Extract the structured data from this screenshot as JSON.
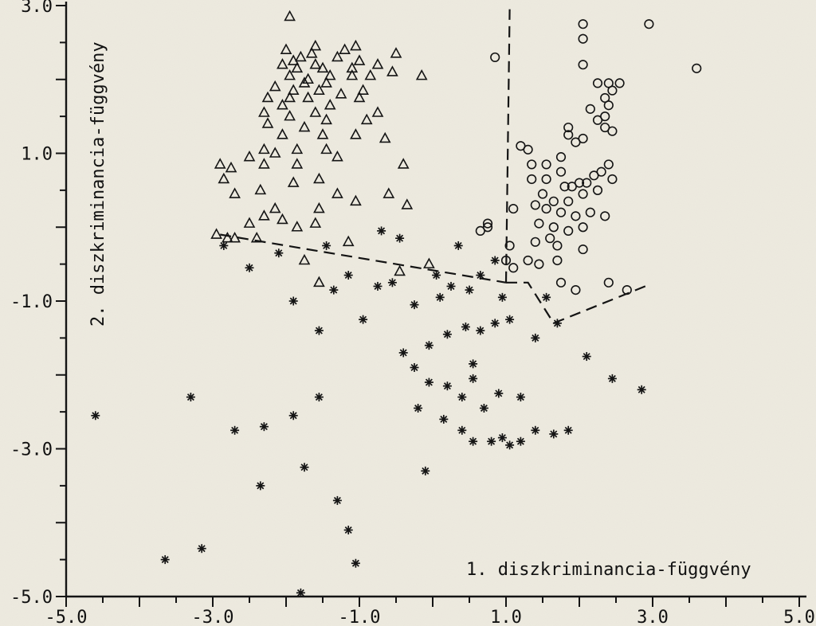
{
  "chart_data": {
    "type": "scatter",
    "title": "",
    "xlabel": "1. diszkriminancia-függvény",
    "ylabel": "2. diszkriminancia-függvény",
    "xlim": [
      -5.0,
      5.0
    ],
    "ylim": [
      -5.0,
      3.0
    ],
    "x_ticks": [
      "-5.0",
      "-3.0",
      "-1.0",
      "1.0",
      "3.0",
      "5.0"
    ],
    "y_ticks": [
      "3.0",
      "1.0",
      "-1.0",
      "-3.0",
      "-5.0"
    ],
    "legend": "none",
    "grid": false,
    "series": [
      {
        "marker": "triangle",
        "values": [
          [
            -1.95,
            2.85
          ],
          [
            -0.15,
            2.05
          ],
          [
            -0.55,
            2.1
          ],
          [
            -0.5,
            2.35
          ],
          [
            -1.1,
            2.05
          ],
          [
            -2.0,
            2.4
          ],
          [
            -1.65,
            2.35
          ],
          [
            -1.8,
            2.3
          ],
          [
            -1.6,
            2.2
          ],
          [
            -1.7,
            2.0
          ],
          [
            -1.9,
            2.25
          ],
          [
            -1.75,
            1.95
          ],
          [
            -1.5,
            2.15
          ],
          [
            -1.4,
            2.05
          ],
          [
            -1.85,
            2.15
          ],
          [
            -1.45,
            1.95
          ],
          [
            -1.55,
            1.85
          ],
          [
            -1.95,
            2.05
          ],
          [
            -2.15,
            1.9
          ],
          [
            -2.25,
            1.75
          ],
          [
            -1.95,
            1.75
          ],
          [
            -1.7,
            1.75
          ],
          [
            -2.05,
            1.65
          ],
          [
            -1.95,
            1.5
          ],
          [
            -2.3,
            1.55
          ],
          [
            -2.25,
            1.4
          ],
          [
            -1.6,
            1.55
          ],
          [
            -1.45,
            1.45
          ],
          [
            -1.75,
            1.35
          ],
          [
            -2.05,
            1.25
          ],
          [
            -1.5,
            1.25
          ],
          [
            -1.45,
            1.05
          ],
          [
            -1.85,
            1.05
          ],
          [
            -2.15,
            1.0
          ],
          [
            -2.3,
            0.85
          ],
          [
            -2.5,
            0.95
          ],
          [
            -2.75,
            0.8
          ],
          [
            -2.85,
            0.65
          ],
          [
            -2.9,
            0.85
          ],
          [
            -2.7,
            0.45
          ],
          [
            -2.35,
            0.5
          ],
          [
            -1.85,
            0.85
          ],
          [
            -1.9,
            0.6
          ],
          [
            -1.55,
            0.65
          ],
          [
            -1.3,
            0.95
          ],
          [
            -1.0,
            1.75
          ],
          [
            -0.9,
            1.45
          ],
          [
            -0.75,
            1.55
          ],
          [
            -1.05,
            1.25
          ],
          [
            -0.65,
            1.2
          ],
          [
            -1.3,
            0.45
          ],
          [
            -1.05,
            0.35
          ],
          [
            -1.55,
            0.25
          ],
          [
            -1.85,
            0.0
          ],
          [
            -2.05,
            0.1
          ],
          [
            -2.3,
            0.15
          ],
          [
            -2.5,
            0.05
          ],
          [
            -2.15,
            0.25
          ],
          [
            -2.8,
            -0.15
          ],
          [
            -2.95,
            -0.1
          ],
          [
            -2.7,
            -0.15
          ],
          [
            -2.4,
            -0.15
          ],
          [
            -1.6,
            0.05
          ],
          [
            -1.15,
            -0.2
          ],
          [
            -1.75,
            -0.45
          ],
          [
            -0.4,
            0.85
          ],
          [
            -0.6,
            0.45
          ],
          [
            -0.35,
            0.3
          ],
          [
            -0.05,
            -0.5
          ],
          [
            -0.45,
            -0.6
          ],
          [
            -1.55,
            -0.75
          ],
          [
            -2.3,
            1.05
          ],
          [
            -1.4,
            1.65
          ],
          [
            -1.2,
            2.4
          ],
          [
            -1.1,
            2.15
          ],
          [
            -1.0,
            2.25
          ],
          [
            -0.75,
            2.2
          ],
          [
            -0.95,
            1.85
          ],
          [
            -1.25,
            1.8
          ],
          [
            -1.6,
            2.45
          ],
          [
            -1.3,
            2.3
          ],
          [
            -1.05,
            2.45
          ],
          [
            -0.85,
            2.05
          ],
          [
            -1.9,
            1.85
          ],
          [
            -2.05,
            2.2
          ]
        ]
      },
      {
        "marker": "circle",
        "values": [
          [
            2.05,
            2.75
          ],
          [
            2.05,
            2.55
          ],
          [
            2.95,
            2.75
          ],
          [
            3.6,
            2.15
          ],
          [
            2.05,
            2.2
          ],
          [
            2.25,
            1.95
          ],
          [
            2.4,
            1.95
          ],
          [
            2.45,
            1.85
          ],
          [
            2.55,
            1.95
          ],
          [
            2.35,
            1.75
          ],
          [
            2.15,
            1.6
          ],
          [
            2.4,
            1.65
          ],
          [
            2.35,
            1.5
          ],
          [
            1.85,
            1.35
          ],
          [
            1.85,
            1.25
          ],
          [
            1.95,
            1.15
          ],
          [
            2.05,
            1.2
          ],
          [
            1.75,
            0.95
          ],
          [
            1.55,
            0.85
          ],
          [
            1.35,
            0.85
          ],
          [
            1.35,
            0.65
          ],
          [
            1.55,
            0.65
          ],
          [
            1.75,
            0.75
          ],
          [
            1.8,
            0.55
          ],
          [
            1.9,
            0.55
          ],
          [
            2.0,
            0.6
          ],
          [
            2.1,
            0.6
          ],
          [
            2.2,
            0.7
          ],
          [
            2.3,
            0.75
          ],
          [
            2.4,
            0.85
          ],
          [
            2.45,
            0.65
          ],
          [
            2.25,
            0.5
          ],
          [
            2.05,
            0.45
          ],
          [
            1.85,
            0.35
          ],
          [
            1.65,
            0.35
          ],
          [
            1.5,
            0.45
          ],
          [
            1.55,
            0.25
          ],
          [
            1.4,
            0.3
          ],
          [
            1.75,
            0.2
          ],
          [
            1.95,
            0.15
          ],
          [
            2.15,
            0.2
          ],
          [
            2.35,
            0.15
          ],
          [
            1.65,
            0.0
          ],
          [
            1.85,
            -0.05
          ],
          [
            2.05,
            0.0
          ],
          [
            1.4,
            -0.2
          ],
          [
            1.6,
            -0.15
          ],
          [
            1.3,
            -0.45
          ],
          [
            1.45,
            -0.5
          ],
          [
            1.7,
            -0.45
          ],
          [
            2.05,
            -0.3
          ],
          [
            1.75,
            -0.75
          ],
          [
            1.95,
            -0.85
          ],
          [
            2.4,
            -0.75
          ],
          [
            2.65,
            -0.85
          ],
          [
            1.05,
            -0.25
          ],
          [
            1.0,
            -0.45
          ],
          [
            1.1,
            -0.55
          ],
          [
            0.65,
            -0.05
          ],
          [
            0.75,
            0.0
          ],
          [
            1.1,
            0.25
          ],
          [
            1.2,
            1.1
          ],
          [
            1.3,
            1.05
          ],
          [
            2.25,
            1.45
          ],
          [
            2.35,
            1.35
          ],
          [
            2.45,
            1.3
          ],
          [
            0.85,
            2.3
          ],
          [
            0.75,
            0.05
          ],
          [
            1.45,
            0.05
          ],
          [
            1.7,
            -0.25
          ]
        ]
      },
      {
        "marker": "asterisk",
        "values": [
          [
            -4.6,
            -2.55
          ],
          [
            -3.3,
            -2.3
          ],
          [
            -2.7,
            -2.75
          ],
          [
            -2.3,
            -2.7
          ],
          [
            -1.9,
            -2.55
          ],
          [
            -1.55,
            -2.3
          ],
          [
            -2.85,
            -0.25
          ],
          [
            -2.5,
            -0.55
          ],
          [
            -2.1,
            -0.35
          ],
          [
            -1.9,
            -1.0
          ],
          [
            -1.35,
            -0.85
          ],
          [
            -1.15,
            -0.65
          ],
          [
            -0.75,
            -0.8
          ],
          [
            -0.55,
            -0.75
          ],
          [
            -0.25,
            -1.05
          ],
          [
            0.05,
            -0.65
          ],
          [
            0.25,
            -0.8
          ],
          [
            0.5,
            -0.85
          ],
          [
            0.65,
            -0.65
          ],
          [
            0.85,
            -0.45
          ],
          [
            -0.4,
            -1.7
          ],
          [
            -0.25,
            -1.9
          ],
          [
            -0.05,
            -1.6
          ],
          [
            0.2,
            -1.45
          ],
          [
            0.45,
            -1.35
          ],
          [
            0.65,
            -1.4
          ],
          [
            0.85,
            -1.3
          ],
          [
            1.05,
            -1.25
          ],
          [
            1.4,
            -1.5
          ],
          [
            1.7,
            -1.3
          ],
          [
            -0.05,
            -2.1
          ],
          [
            0.2,
            -2.15
          ],
          [
            0.4,
            -2.3
          ],
          [
            0.55,
            -2.05
          ],
          [
            0.7,
            -2.45
          ],
          [
            0.9,
            -2.25
          ],
          [
            1.2,
            -2.3
          ],
          [
            1.4,
            -2.75
          ],
          [
            1.65,
            -2.8
          ],
          [
            1.85,
            -2.75
          ],
          [
            0.15,
            -2.6
          ],
          [
            0.4,
            -2.75
          ],
          [
            0.55,
            -2.9
          ],
          [
            0.8,
            -2.9
          ],
          [
            0.95,
            -2.85
          ],
          [
            1.05,
            -2.95
          ],
          [
            1.2,
            -2.9
          ],
          [
            2.85,
            -2.2
          ],
          [
            2.45,
            -2.05
          ],
          [
            2.1,
            -1.75
          ],
          [
            -0.1,
            -3.3
          ],
          [
            -1.75,
            -3.25
          ],
          [
            -2.35,
            -3.5
          ],
          [
            -1.3,
            -3.7
          ],
          [
            -1.15,
            -4.1
          ],
          [
            -3.65,
            -4.5
          ],
          [
            -3.15,
            -4.35
          ],
          [
            -1.05,
            -4.55
          ],
          [
            -1.8,
            -4.95
          ],
          [
            0.1,
            -0.95
          ],
          [
            -1.55,
            -1.4
          ],
          [
            -0.95,
            -1.25
          ],
          [
            -0.7,
            -0.05
          ],
          [
            -0.45,
            -0.15
          ],
          [
            -1.45,
            -0.25
          ],
          [
            0.35,
            -0.25
          ],
          [
            0.95,
            -0.95
          ],
          [
            1.55,
            -0.95
          ],
          [
            -0.2,
            -2.45
          ],
          [
            0.55,
            -1.85
          ]
        ]
      }
    ],
    "boundaries": [
      [
        [
          -2.9,
          -0.1
        ],
        [
          1.0,
          -0.75
        ]
      ],
      [
        [
          1.0,
          -0.75
        ],
        [
          1.05,
          2.95
        ]
      ],
      [
        [
          1.0,
          -0.75
        ],
        [
          1.3,
          -0.75
        ],
        [
          1.65,
          -1.3
        ],
        [
          2.9,
          -0.8
        ]
      ]
    ]
  }
}
